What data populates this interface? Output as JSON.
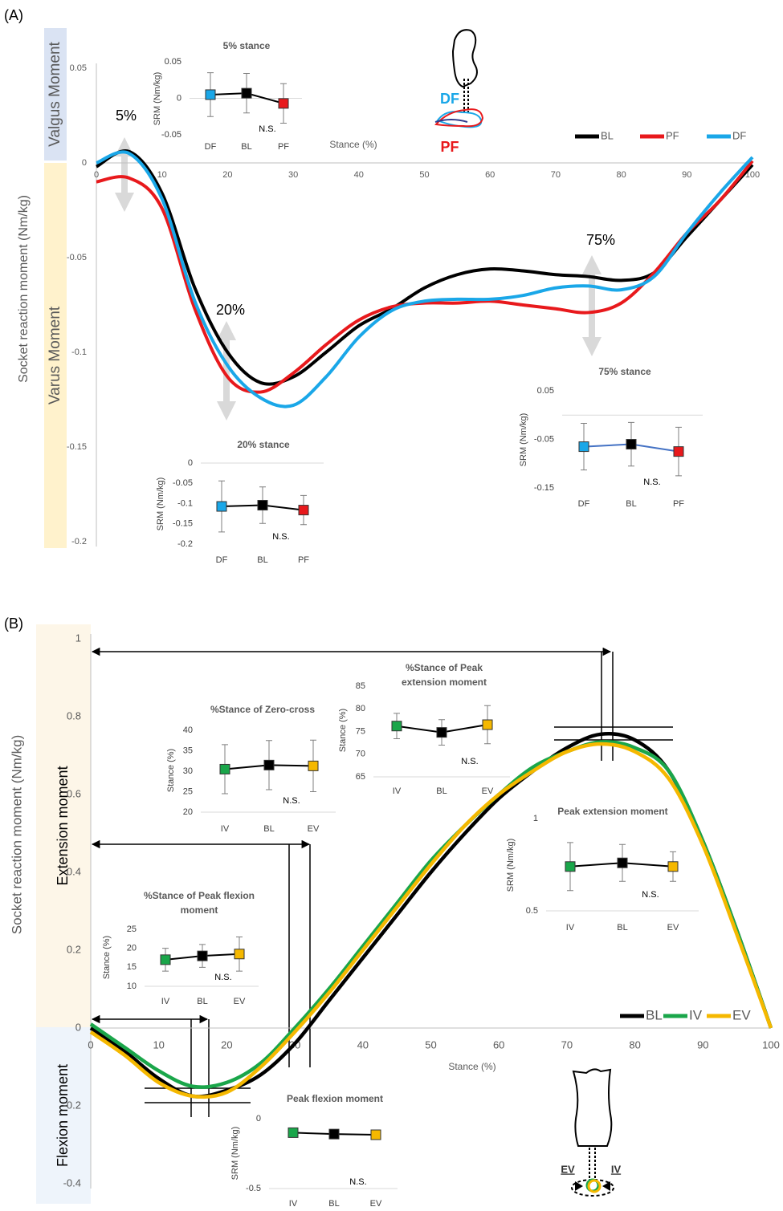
{
  "chart_data": [
    {
      "type": "line",
      "panel_label": "(A)",
      "ylabel": "Socket reaction moment (Nm/kg)",
      "xlabel": "Stance (%)",
      "regions": [
        "Valgus Moment",
        "Varus Moment"
      ],
      "annotations": [
        "5%",
        "20%",
        "75%"
      ],
      "diagram_labels": [
        "DF",
        "PF"
      ],
      "x": [
        0,
        5,
        10,
        15,
        20,
        25,
        30,
        35,
        40,
        45,
        50,
        55,
        60,
        65,
        70,
        75,
        80,
        85,
        90,
        95,
        100
      ],
      "series": [
        {
          "name": "BL",
          "color": "#000000",
          "values": [
            -0.002,
            0.006,
            -0.016,
            -0.066,
            -0.1,
            -0.116,
            -0.113,
            -0.1,
            -0.086,
            -0.077,
            -0.066,
            -0.059,
            -0.056,
            -0.057,
            -0.059,
            -0.06,
            -0.062,
            -0.058,
            -0.039,
            -0.02,
            -0.001
          ]
        },
        {
          "name": "PF",
          "color": "#e8191c",
          "values": [
            -0.01,
            -0.008,
            -0.024,
            -0.077,
            -0.113,
            -0.121,
            -0.111,
            -0.096,
            -0.083,
            -0.076,
            -0.074,
            -0.074,
            -0.073,
            -0.075,
            -0.077,
            -0.079,
            -0.074,
            -0.058,
            -0.037,
            -0.02,
            0.001
          ]
        },
        {
          "name": "DF",
          "color": "#1aa7e8",
          "values": [
            0,
            0.005,
            -0.019,
            -0.073,
            -0.107,
            -0.124,
            -0.128,
            -0.113,
            -0.092,
            -0.078,
            -0.073,
            -0.072,
            -0.072,
            -0.07,
            -0.066,
            -0.065,
            -0.067,
            -0.06,
            -0.037,
            -0.016,
            0.003
          ]
        }
      ],
      "xlim": [
        0,
        100
      ],
      "ylim": [
        -0.2,
        0.05
      ],
      "xticks": [
        0,
        10,
        20,
        30,
        40,
        50,
        60,
        70,
        80,
        90,
        100
      ],
      "yticks": [
        0.05,
        0,
        -0.05,
        -0.1,
        -0.15,
        -0.2
      ]
    },
    {
      "type": "errorbar",
      "title": "5% stance",
      "ylabel": "SRM (Nm/kg)",
      "note": "N.S.",
      "categories": [
        "DF",
        "BL",
        "PF"
      ],
      "values": [
        0.005,
        0.007,
        -0.007
      ],
      "errors": [
        0.03,
        0.027,
        0.027
      ],
      "colors": [
        "#1aa7e8",
        "#000000",
        "#e8191c"
      ],
      "line_color": "#000000",
      "ylim": [
        -0.05,
        0.05
      ],
      "yticks": [
        0.05,
        0,
        -0.05
      ]
    },
    {
      "type": "errorbar",
      "title": "20% stance",
      "ylabel": "SRM (Nm/kg)",
      "note": "N.S.",
      "categories": [
        "DF",
        "BL",
        "PF"
      ],
      "values": [
        -0.107,
        -0.104,
        -0.116
      ],
      "errors": [
        0.063,
        0.045,
        0.036
      ],
      "colors": [
        "#1aa7e8",
        "#000000",
        "#e8191c"
      ],
      "line_color": "#000000",
      "ylim": [
        -0.2,
        0
      ],
      "yticks": [
        0,
        -0.05,
        -0.1,
        -0.15,
        -0.2
      ]
    },
    {
      "type": "errorbar",
      "title": "75% stance",
      "ylabel": "SRM (Nm/kg)",
      "note": "N.S.",
      "categories": [
        "DF",
        "BL",
        "PF"
      ],
      "values": [
        -0.065,
        -0.06,
        -0.075
      ],
      "errors": [
        0.048,
        0.045,
        0.05
      ],
      "colors": [
        "#1aa7e8",
        "#000000",
        "#e8191c"
      ],
      "line_color": "#4472c4",
      "ylim": [
        -0.15,
        0.05
      ],
      "yticks": [
        0.05,
        -0.05,
        -0.15
      ]
    },
    {
      "type": "line",
      "panel_label": "(B)",
      "ylabel": "Socket reaction moment (Nm/kg)",
      "xlabel": "Stance (%)",
      "regions": [
        "Extension moment",
        "Flexion moment"
      ],
      "annotations": [],
      "diagram_labels": [
        "EV",
        "IV"
      ],
      "x": [
        0,
        5,
        10,
        15,
        20,
        25,
        30,
        35,
        40,
        45,
        50,
        55,
        60,
        65,
        70,
        75,
        80,
        85,
        90,
        95,
        100
      ],
      "series": [
        {
          "name": "BL",
          "color": "#000000",
          "values": [
            0,
            -0.06,
            -0.13,
            -0.175,
            -0.16,
            -0.12,
            -0.04,
            0.07,
            0.18,
            0.29,
            0.4,
            0.5,
            0.59,
            0.66,
            0.72,
            0.755,
            0.74,
            0.66,
            0.48,
            0.25,
            0
          ]
        },
        {
          "name": "IV",
          "color": "#1aa64a",
          "values": [
            0.01,
            -0.05,
            -0.11,
            -0.15,
            -0.14,
            -0.09,
            0,
            0.1,
            0.21,
            0.32,
            0.43,
            0.52,
            0.6,
            0.67,
            0.71,
            0.735,
            0.72,
            0.66,
            0.48,
            0.25,
            0
          ]
        },
        {
          "name": "EV",
          "color": "#f5b800",
          "values": [
            -0.01,
            -0.07,
            -0.14,
            -0.175,
            -0.165,
            -0.1,
            -0.01,
            0.09,
            0.2,
            0.31,
            0.42,
            0.52,
            0.6,
            0.66,
            0.71,
            0.73,
            0.71,
            0.64,
            0.47,
            0.24,
            0
          ]
        }
      ],
      "xlim": [
        0,
        100
      ],
      "ylim": [
        -0.4,
        1
      ],
      "xticks": [
        0,
        10,
        20,
        30,
        40,
        50,
        60,
        70,
        80,
        90,
        100
      ],
      "yticks": [
        1,
        0.8,
        0.6,
        0.4,
        0.2,
        0,
        -0.2,
        -0.4
      ]
    },
    {
      "type": "errorbar",
      "title": "%Stance of Zero-cross",
      "ylabel": "Stance (%)",
      "note": "N.S.",
      "categories": [
        "IV",
        "BL",
        "EV"
      ],
      "values": [
        30.5,
        31.5,
        31.3
      ],
      "errors": [
        6,
        6,
        6.3
      ],
      "colors": [
        "#1aa64a",
        "#000000",
        "#f5b800"
      ],
      "line_color": "#000000",
      "ylim": [
        20,
        40
      ],
      "yticks": [
        40,
        35,
        30,
        25,
        20
      ]
    },
    {
      "type": "errorbar",
      "title": "%Stance of Peak extension moment",
      "ylabel": "Stance (%)",
      "note": "N.S.",
      "categories": [
        "IV",
        "BL",
        "EV"
      ],
      "values": [
        76.2,
        74.8,
        76.5
      ],
      "errors": [
        2.8,
        2.8,
        4.2
      ],
      "colors": [
        "#1aa64a",
        "#000000",
        "#f5b800"
      ],
      "line_color": "#000000",
      "ylim": [
        65,
        85
      ],
      "yticks": [
        85,
        80,
        75,
        70,
        65
      ]
    },
    {
      "type": "errorbar",
      "title": "Peak extension moment",
      "ylabel": "SRM (Nm/kg)",
      "note": "N.S.",
      "categories": [
        "IV",
        "BL",
        "EV"
      ],
      "values": [
        0.74,
        0.76,
        0.74
      ],
      "errors": [
        0.13,
        0.1,
        0.08
      ],
      "colors": [
        "#1aa64a",
        "#000000",
        "#f5b800"
      ],
      "line_color": "#000000",
      "ylim": [
        0.5,
        1
      ],
      "yticks": [
        1,
        0.5
      ]
    },
    {
      "type": "errorbar",
      "title": "%Stance of Peak flexion moment",
      "ylabel": "Stance (%)",
      "note": "N.S.",
      "categories": [
        "IV",
        "BL",
        "EV"
      ],
      "values": [
        17,
        18,
        18.5
      ],
      "errors": [
        3,
        3,
        4.5
      ],
      "colors": [
        "#1aa64a",
        "#000000",
        "#f5b800"
      ],
      "line_color": "#000000",
      "ylim": [
        10,
        25
      ],
      "yticks": [
        25,
        20,
        15,
        10
      ]
    },
    {
      "type": "errorbar",
      "title": "Peak flexion moment",
      "ylabel": "SRM (Nm/kg)",
      "note": "N.S.",
      "categories": [
        "IV",
        "BL",
        "EV"
      ],
      "values": [
        -0.1,
        -0.11,
        -0.115
      ],
      "errors": [
        0.02,
        0.03,
        0.03
      ],
      "colors": [
        "#1aa64a",
        "#000000",
        "#f5b800"
      ],
      "line_color": "#000000",
      "ylim": [
        -0.5,
        0
      ],
      "yticks": [
        0,
        -0.5
      ]
    }
  ]
}
